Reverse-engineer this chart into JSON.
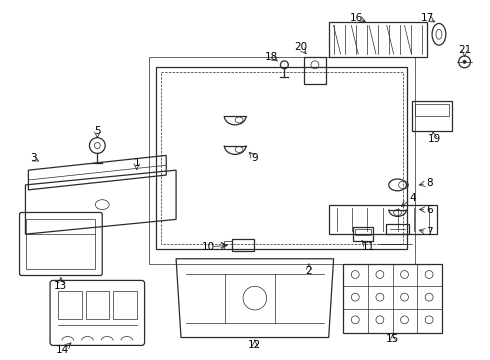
{
  "bg_color": "#ffffff",
  "line_color": "#2a2a2a",
  "label_color": "#000000",
  "fig_w": 4.9,
  "fig_h": 3.6,
  "dpi": 100
}
